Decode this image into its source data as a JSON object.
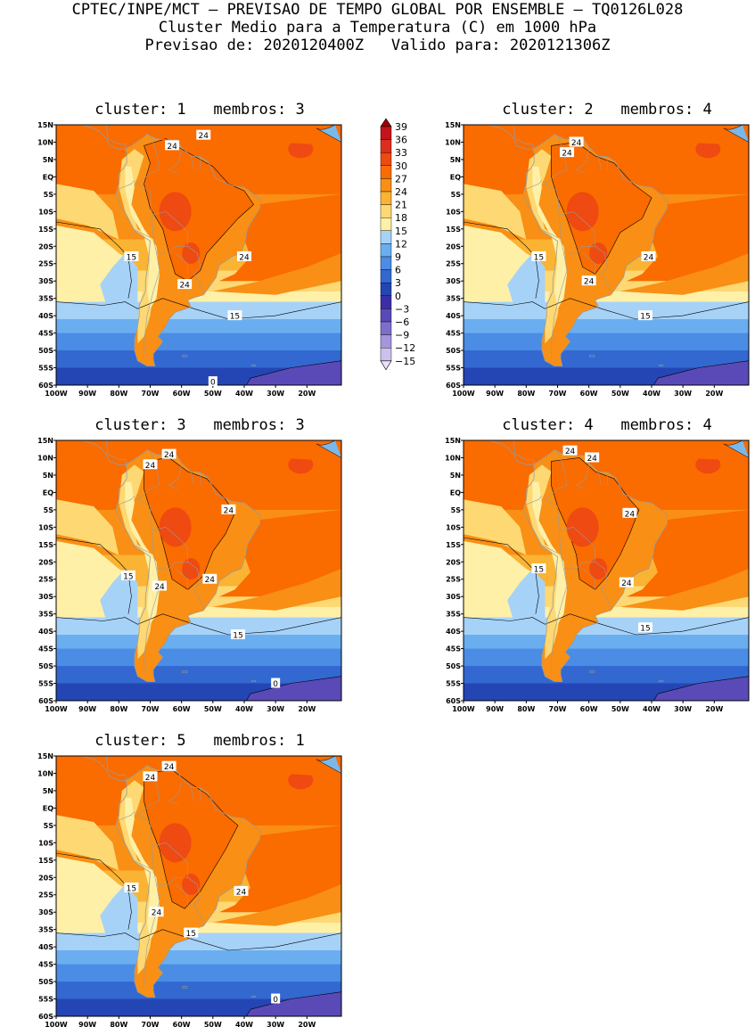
{
  "header": {
    "line1": "CPTEC/INPE/MCT — PREVISAO DE TEMPO GLOBAL POR ENSEMBLE — TQ0126L028",
    "line2": "Cluster Medio para a Temperatura (C) em 1000 hPa",
    "line3": "Previsao de: 2020120400Z   Valido para: 2020121306Z"
  },
  "axes": {
    "lat_ticks": [
      "15N",
      "10N",
      "5N",
      "EQ",
      "5S",
      "10S",
      "15S",
      "20S",
      "25S",
      "30S",
      "35S",
      "40S",
      "45S",
      "50S",
      "55S",
      "60S"
    ],
    "lon_ticks": [
      "100W",
      "90W",
      "80W",
      "70W",
      "60W",
      "50W",
      "40W",
      "30W",
      "20W"
    ]
  },
  "colorbar": {
    "labels": [
      "39",
      "36",
      "33",
      "30",
      "27",
      "24",
      "21",
      "18",
      "15",
      "12",
      "9",
      "6",
      "3",
      "0",
      "−3",
      "−6",
      "−9",
      "−12",
      "−15"
    ],
    "colors": [
      "#9e0000",
      "#c4141a",
      "#dd2e1d",
      "#ee4a12",
      "#fa6b00",
      "#f98f14",
      "#fbb333",
      "#fdd873",
      "#fff0a8",
      "#a6d2f8",
      "#6aaef0",
      "#4b8ce4",
      "#3268d0",
      "#2446b4",
      "#3a2ea8",
      "#5a4ab8",
      "#7e6ecc",
      "#a496dd",
      "#cbc1ec",
      "#e8e2f6"
    ]
  },
  "panels": [
    {
      "title": "cluster: 1   membros: 3",
      "labels": [
        {
          "text": "24",
          "lon": -53,
          "lat": 12
        },
        {
          "text": "24",
          "lon": -63,
          "lat": 9
        },
        {
          "text": "24",
          "lon": -40,
          "lat": -23
        },
        {
          "text": "24",
          "lon": -59,
          "lat": -31
        },
        {
          "text": "15",
          "lon": -76,
          "lat": -23
        },
        {
          "text": "15",
          "lon": -43,
          "lat": -40
        },
        {
          "text": "0",
          "lon": -50,
          "lat": -59
        }
      ]
    },
    {
      "title": "cluster: 2   membros: 4",
      "labels": [
        {
          "text": "24",
          "lon": -64,
          "lat": 10
        },
        {
          "text": "24",
          "lon": -67,
          "lat": 7
        },
        {
          "text": "24",
          "lon": -41,
          "lat": -23
        },
        {
          "text": "24",
          "lon": -60,
          "lat": -30
        },
        {
          "text": "15",
          "lon": -76,
          "lat": -23
        },
        {
          "text": "15",
          "lon": -42,
          "lat": -40
        }
      ]
    },
    {
      "title": "cluster: 3   membros: 3",
      "labels": [
        {
          "text": "24",
          "lon": -64,
          "lat": 11
        },
        {
          "text": "24",
          "lon": -70,
          "lat": 8
        },
        {
          "text": "24",
          "lon": -45,
          "lat": -5
        },
        {
          "text": "24",
          "lon": -51,
          "lat": -25
        },
        {
          "text": "24",
          "lon": -67,
          "lat": -27
        },
        {
          "text": "15",
          "lon": -77,
          "lat": -24
        },
        {
          "text": "15",
          "lon": -42,
          "lat": -41
        },
        {
          "text": "0",
          "lon": -30,
          "lat": -55
        }
      ]
    },
    {
      "title": "cluster: 4   membros: 4",
      "labels": [
        {
          "text": "24",
          "lon": -66,
          "lat": 12
        },
        {
          "text": "24",
          "lon": -59,
          "lat": 10
        },
        {
          "text": "24",
          "lon": -47,
          "lat": -6
        },
        {
          "text": "24",
          "lon": -48,
          "lat": -26
        },
        {
          "text": "15",
          "lon": -76,
          "lat": -22
        },
        {
          "text": "15",
          "lon": -42,
          "lat": -39
        }
      ]
    },
    {
      "title": "cluster: 5   membros: 1",
      "labels": [
        {
          "text": "24",
          "lon": -64,
          "lat": 12
        },
        {
          "text": "24",
          "lon": -70,
          "lat": 9
        },
        {
          "text": "24",
          "lon": -41,
          "lat": -24
        },
        {
          "text": "24",
          "lon": -68,
          "lat": -30
        },
        {
          "text": "15",
          "lon": -76,
          "lat": -23
        },
        {
          "text": "15",
          "lon": -57,
          "lat": -36
        },
        {
          "text": "0",
          "lon": -30,
          "lat": -55
        }
      ]
    }
  ]
}
